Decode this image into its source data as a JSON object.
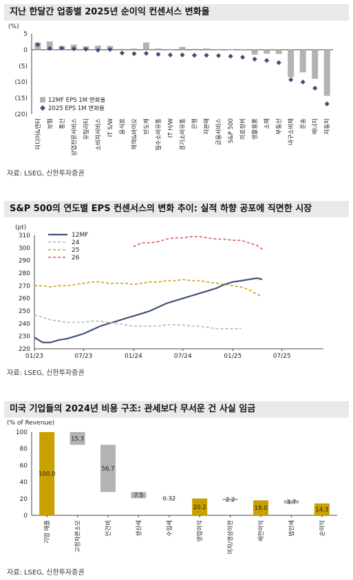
{
  "charts": [
    {
      "title": "지난 한달간 업종별 2025년 순이익 컨센서스 변화율",
      "source": "자료: LSEG, 신한투자증권",
      "chart_data": {
        "type": "bar",
        "unit_label": "(%)",
        "categories": [
          "미디어&엔터",
          "보험",
          "통신",
          "상업전문서비스",
          "유틸리티",
          "소비자서비스",
          "IT S/W",
          "음식료",
          "제약&바이오",
          "반도체",
          "필수소비유통",
          "IT H/W",
          "경기소비유통",
          "은행",
          "자본재",
          "금융서비스",
          "S&P 500",
          "의료장비",
          "생활용품",
          "소재",
          "부동산",
          "내구소비재",
          "운송",
          "에너지",
          "자동차"
        ],
        "series": [
          {
            "name": "12MF EPS 1M 변화율",
            "values": [
              2.3,
              2.6,
              1.2,
              1.6,
              1.1,
              1.3,
              1.2,
              0.3,
              0.4,
              2.3,
              0.4,
              0.2,
              0.9,
              0.3,
              0.4,
              0.2,
              0.1,
              -0.2,
              -1.5,
              -1.2,
              -1.3,
              -8.5,
              -7.0,
              -9.0,
              -14.3
            ]
          },
          {
            "name": "2025 EPS 1M 변화율",
            "values": [
              1.6,
              0.4,
              0.5,
              0.3,
              0.2,
              -0.1,
              0.1,
              -1.0,
              -1.2,
              -1.1,
              -1.4,
              -1.6,
              -1.6,
              -1.7,
              -1.7,
              -1.8,
              -2.0,
              -2.3,
              -2.9,
              -3.3,
              -4.0,
              -9.3,
              -10.0,
              -11.9,
              -16.8
            ]
          }
        ],
        "ylim": [
          -20,
          5
        ],
        "yticks": [
          "5",
          "0",
          "(5)",
          "(10)",
          "(15)",
          "(20)"
        ],
        "colors": {
          "bar": "#b3b3b3",
          "marker": "#3e4f78"
        },
        "legend_position": "bottom-left"
      }
    },
    {
      "title": "S&P 500의 연도별 EPS 컨센서스의 변화 추이: 실적 하향 공포에 직면한 시장",
      "source": "자료: LSEG, 신한투자증권",
      "chart_data": {
        "type": "line",
        "unit_label": "(pt)",
        "x_ticks": [
          "01/23",
          "07/23",
          "01/24",
          "07/24",
          "01/25",
          "07/25"
        ],
        "ylim": [
          220,
          310
        ],
        "yticks": [
          "310",
          "300",
          "290",
          "280",
          "270",
          "260",
          "250",
          "240",
          "230",
          "220"
        ],
        "legend_position": "top",
        "series": [
          {
            "name": "12MF",
            "color": "#3e4f78",
            "style": "solid",
            "points": [
              [
                "2023-01",
                229
              ],
              [
                "2023-02",
                225
              ],
              [
                "2023-03",
                225
              ],
              [
                "2023-04",
                227
              ],
              [
                "2023-05",
                228
              ],
              [
                "2023-06",
                230
              ],
              [
                "2023-07",
                232
              ],
              [
                "2023-08",
                235
              ],
              [
                "2023-09",
                238
              ],
              [
                "2023-10",
                240
              ],
              [
                "2023-11",
                242
              ],
              [
                "2023-12",
                244
              ],
              [
                "2024-01",
                246
              ],
              [
                "2024-02",
                248
              ],
              [
                "2024-03",
                250
              ],
              [
                "2024-04",
                253
              ],
              [
                "2024-05",
                256
              ],
              [
                "2024-06",
                258
              ],
              [
                "2024-07",
                260
              ],
              [
                "2024-08",
                262
              ],
              [
                "2024-09",
                264
              ],
              [
                "2024-10",
                266
              ],
              [
                "2024-11",
                268
              ],
              [
                "2024-12",
                271
              ],
              [
                "2025-01",
                273
              ],
              [
                "2025-02",
                274
              ],
              [
                "2025-03",
                275
              ],
              [
                "2025-04",
                276
              ],
              [
                "2025-04-20",
                275
              ]
            ]
          },
          {
            "name": "24",
            "color": "#b3b3b3",
            "style": "dashed",
            "points": [
              [
                "2023-01",
                247
              ],
              [
                "2023-02",
                245
              ],
              [
                "2023-03",
                243
              ],
              [
                "2023-04",
                242
              ],
              [
                "2023-05",
                241
              ],
              [
                "2023-06",
                241
              ],
              [
                "2023-07",
                241
              ],
              [
                "2023-08",
                242
              ],
              [
                "2023-09",
                242
              ],
              [
                "2023-10",
                241
              ],
              [
                "2023-11",
                240
              ],
              [
                "2023-12",
                239
              ],
              [
                "2024-01",
                238
              ],
              [
                "2024-02",
                238
              ],
              [
                "2024-03",
                238
              ],
              [
                "2024-04",
                238
              ],
              [
                "2024-05",
                239
              ],
              [
                "2024-06",
                239
              ],
              [
                "2024-07",
                239
              ],
              [
                "2024-08",
                238
              ],
              [
                "2024-09",
                238
              ],
              [
                "2024-10",
                237
              ],
              [
                "2024-11",
                236
              ],
              [
                "2024-12",
                236
              ],
              [
                "2025-01",
                236
              ],
              [
                "2025-02",
                236
              ]
            ]
          },
          {
            "name": "25",
            "color": "#c9a000",
            "style": "dashed",
            "points": [
              [
                "2023-01",
                270
              ],
              [
                "2023-02",
                270
              ],
              [
                "2023-03",
                269
              ],
              [
                "2023-04",
                270
              ],
              [
                "2023-05",
                270
              ],
              [
                "2023-06",
                271
              ],
              [
                "2023-07",
                272
              ],
              [
                "2023-08",
                273
              ],
              [
                "2023-09",
                273
              ],
              [
                "2023-10",
                272
              ],
              [
                "2023-11",
                272
              ],
              [
                "2023-12",
                272
              ],
              [
                "2024-01",
                271
              ],
              [
                "2024-02",
                272
              ],
              [
                "2024-03",
                273
              ],
              [
                "2024-04",
                273
              ],
              [
                "2024-05",
                274
              ],
              [
                "2024-06",
                274
              ],
              [
                "2024-07",
                275
              ],
              [
                "2024-08",
                274
              ],
              [
                "2024-09",
                274
              ],
              [
                "2024-10",
                273
              ],
              [
                "2024-11",
                272
              ],
              [
                "2024-12",
                271
              ],
              [
                "2025-01",
                270
              ],
              [
                "2025-02",
                269
              ],
              [
                "2025-03",
                267
              ],
              [
                "2025-04",
                263
              ],
              [
                "2025-04-20",
                262
              ]
            ]
          },
          {
            "name": "26",
            "color": "#e05050",
            "style": "dashed",
            "points": [
              [
                "2024-01",
                301
              ],
              [
                "2024-02",
                304
              ],
              [
                "2024-03",
                304
              ],
              [
                "2024-04",
                305
              ],
              [
                "2024-05",
                307
              ],
              [
                "2024-06",
                308
              ],
              [
                "2024-07",
                308
              ],
              [
                "2024-08",
                309
              ],
              [
                "2024-09",
                309
              ],
              [
                "2024-10",
                308
              ],
              [
                "2024-11",
                307
              ],
              [
                "2024-12",
                307
              ],
              [
                "2025-01",
                306
              ],
              [
                "2025-02",
                306
              ],
              [
                "2025-03",
                304
              ],
              [
                "2025-04",
                302
              ],
              [
                "2025-04-20",
                299
              ]
            ]
          }
        ]
      }
    },
    {
      "title": "미국 기업들의 2024년 비용 구조: 관세보다 무서운 건 사실 임금",
      "source": "자료: LSEG, 신한투자증권",
      "chart_data": {
        "type": "bar",
        "subtype": "waterfall",
        "unit_label": "(% of Revenue)",
        "ylim": [
          0,
          100
        ],
        "yticks": [
          "100",
          "80",
          "60",
          "40",
          "20",
          "0"
        ],
        "categories": [
          "기업 매출",
          "고정자본소모",
          "인건비",
          "생산세",
          "수입세",
          "영업이익",
          "이자/경상이전",
          "세전이익",
          "법인세",
          "순이익"
        ],
        "values": [
          100.0,
          15.3,
          56.7,
          7.5,
          0.32,
          20.2,
          2.2,
          18.0,
          3.7,
          14.3
        ],
        "labels": [
          "100.0",
          "15.3",
          "56.7",
          "7.5",
          "0.32",
          "20.2",
          "2.2",
          "18.0",
          "3.7",
          "14.3"
        ],
        "kinds": [
          "total",
          "decrease",
          "decrease",
          "decrease",
          "decrease",
          "total",
          "decrease",
          "total",
          "decrease",
          "total"
        ],
        "colors": {
          "total": "#c9a000",
          "decrease": "#b3b3b3"
        }
      }
    }
  ]
}
